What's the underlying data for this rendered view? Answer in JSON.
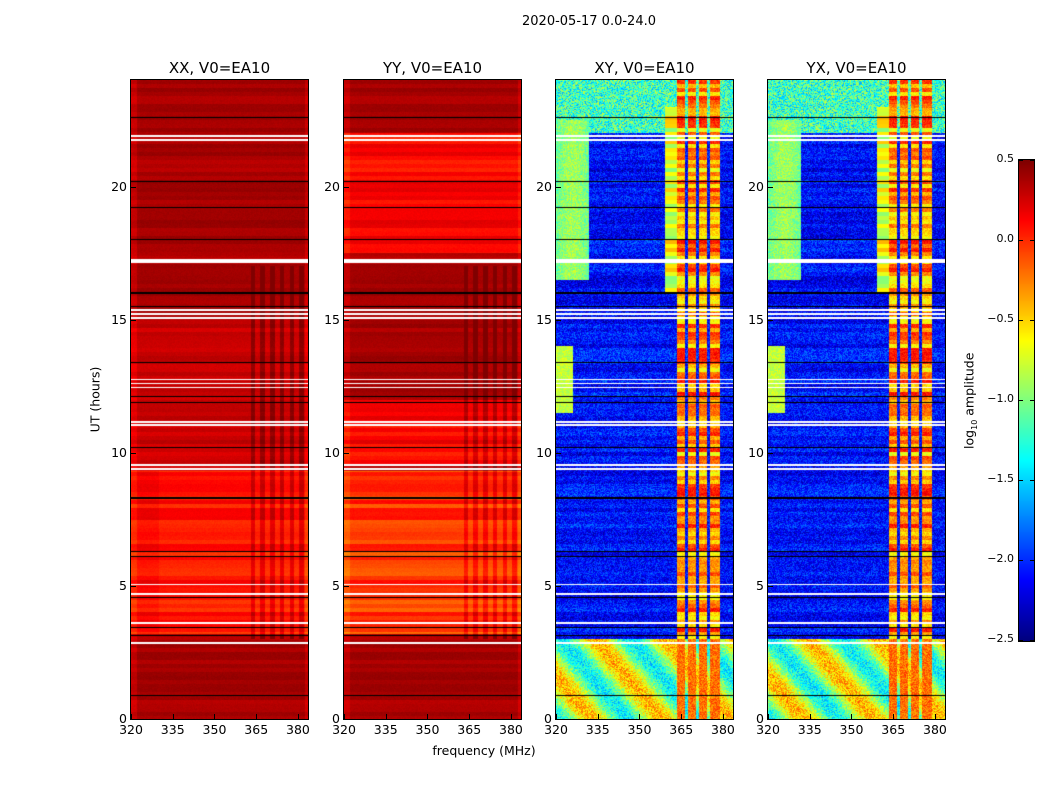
{
  "chart_data": {
    "type": "heatmap",
    "title": "2020-05-17 0.0-24.0",
    "xlabel": "frequency (MHz)",
    "ylabel": "UT (hours)",
    "xlim": [
      320,
      383.6
    ],
    "ylim": [
      0,
      24
    ],
    "xticks": [
      "320",
      "335",
      "350",
      "365",
      "380"
    ],
    "yticks": [
      "0",
      "5",
      "10",
      "15",
      "20"
    ],
    "panels": [
      {
        "title": "XX, V0=EA10",
        "kind": "parallel",
        "id": "xx"
      },
      {
        "title": "YY, V0=EA10",
        "kind": "parallel",
        "id": "yy"
      },
      {
        "title": "XY, V0=EA10",
        "kind": "cross",
        "id": "xy"
      },
      {
        "title": "YX, V0=EA10",
        "kind": "cross",
        "id": "yx"
      }
    ],
    "colorbar": {
      "label_prefix": "log",
      "label_sub": "10",
      "label_suffix": " amplitude",
      "colormap": "jet",
      "vmin": -2.5,
      "vmax": 0.5,
      "ticks": [
        "0.5",
        "0.0",
        "−0.5",
        "−1.0",
        "−1.5",
        "−2.0",
        "−2.5"
      ]
    },
    "flagged_hours": [
      2.85,
      3.6,
      4.7,
      5.05,
      9.4,
      9.55,
      11.05,
      11.15,
      12.45,
      12.6,
      12.75,
      15.05,
      15.2,
      15.35,
      17.15,
      17.25,
      21.75,
      21.9
    ]
  }
}
